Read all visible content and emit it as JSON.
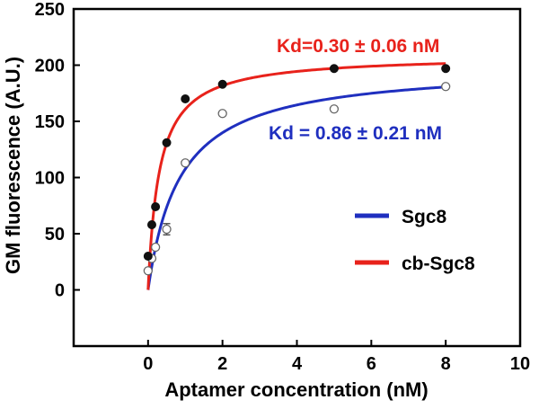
{
  "chart_data": {
    "type": "scatter",
    "xlabel": "Aptamer concentration (nM)",
    "ylabel": "GM fluorescence (A.U.)",
    "xlim": [
      -2,
      10
    ],
    "ylim": [
      -50,
      250
    ],
    "xticks": [
      0,
      2,
      4,
      6,
      8,
      10
    ],
    "yticks": [
      0,
      50,
      100,
      150,
      200,
      250
    ],
    "grid": false,
    "legend_position": "right",
    "series": [
      {
        "name": "Sgc8",
        "color": "#1f2fbf",
        "marker": "open-circle",
        "points": [
          {
            "x": 0,
            "y": 17
          },
          {
            "x": 0.1,
            "y": 28
          },
          {
            "x": 0.2,
            "y": 38
          },
          {
            "x": 0.5,
            "y": 54,
            "err": 5
          },
          {
            "x": 1,
            "y": 113
          },
          {
            "x": 2,
            "y": 157
          },
          {
            "x": 5,
            "y": 161
          },
          {
            "x": 8,
            "y": 181
          }
        ],
        "fit": {
          "model": "one-site binding",
          "Bmax": 200,
          "Kd": 0.86
        },
        "annotation": "Kd = 0.86 ± 0.21 nM"
      },
      {
        "name": "cb-Sgc8",
        "color": "#e8221b",
        "marker": "filled-circle",
        "points": [
          {
            "x": 0,
            "y": 30
          },
          {
            "x": 0.1,
            "y": 58
          },
          {
            "x": 0.2,
            "y": 74
          },
          {
            "x": 0.5,
            "y": 131
          },
          {
            "x": 1,
            "y": 170
          },
          {
            "x": 2,
            "y": 183
          },
          {
            "x": 5,
            "y": 197
          },
          {
            "x": 8,
            "y": 197
          }
        ],
        "fit": {
          "model": "one-site binding",
          "Bmax": 209,
          "Kd": 0.3
        },
        "annotation": "Kd=0.30 ± 0.06 nM"
      }
    ]
  }
}
